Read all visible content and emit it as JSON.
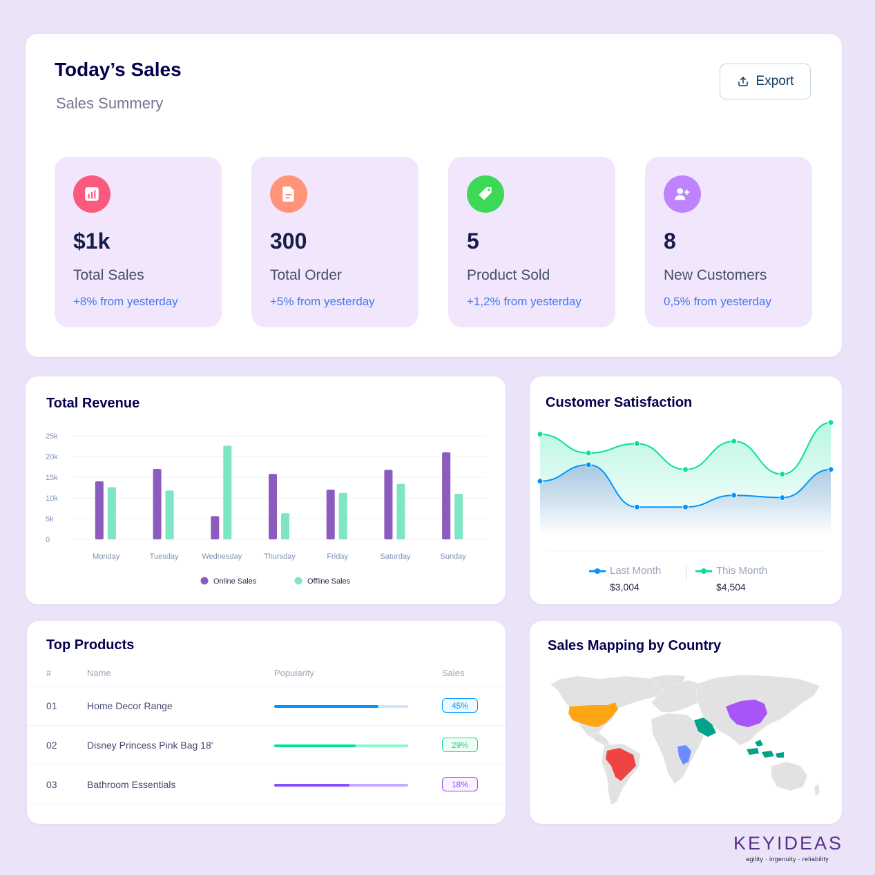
{
  "today": {
    "title": "Today’s Sales",
    "subtitle": "Sales Summery",
    "export_label": "Export",
    "stats": [
      {
        "value": "$1k",
        "label": "Total Sales",
        "change": "+8% from yesterday",
        "icon": "bar-chart-icon",
        "color": "#fa5a7d"
      },
      {
        "value": "300",
        "label": "Total Order",
        "change": "+5% from yesterday",
        "icon": "document-icon",
        "color": "#ff947a"
      },
      {
        "value": "5",
        "label": "Product Sold",
        "change": "+1,2% from yesterday",
        "icon": "tag-icon",
        "color": "#3cd856"
      },
      {
        "value": "8",
        "label": "New Customers",
        "change": "0,5% from yesterday",
        "icon": "add-user-icon",
        "color": "#bf83ff"
      }
    ]
  },
  "revenue": {
    "title": "Total Revenue",
    "chart_data": {
      "type": "bar",
      "categories": [
        "Monday",
        "Tuesday",
        "Wednesday",
        "Thursday",
        "Friday",
        "Saturday",
        "Sunday"
      ],
      "series": [
        {
          "name": "Online Sales",
          "color": "#8b5bbd",
          "values": [
            14000,
            17000,
            5600,
            15800,
            12000,
            16800,
            21000
          ]
        },
        {
          "name": "Offline Sales",
          "color": "#7ee5c5",
          "values": [
            12600,
            11800,
            22600,
            6300,
            11200,
            13400,
            11000
          ]
        }
      ],
      "yticks": [
        "0",
        "5k",
        "10k",
        "15k",
        "20k",
        "25k"
      ],
      "ylim": [
        0,
        25000
      ],
      "grid": true,
      "legend": "bottom"
    }
  },
  "satisfaction": {
    "title": "Customer Satisfaction",
    "chart_data": {
      "type": "area",
      "x": [
        1,
        2,
        3,
        4,
        5,
        6,
        7
      ],
      "series": [
        {
          "name": "Last Month",
          "color": "#0095ff",
          "values": [
            2.3,
            3.0,
            1.2,
            1.2,
            1.7,
            1.6,
            2.8
          ]
        },
        {
          "name": "This Month",
          "color": "#07e098",
          "values": [
            4.3,
            3.5,
            3.9,
            2.8,
            4.0,
            2.6,
            4.8
          ]
        }
      ],
      "ylim": [
        0,
        5
      ],
      "legend": "bottom"
    },
    "legend": [
      {
        "name": "Last Month",
        "amount": "$3,004",
        "color": "#0095ff"
      },
      {
        "name": "This Month",
        "amount": "$4,504",
        "color": "#07e098"
      }
    ]
  },
  "products": {
    "title": "Top Products",
    "headers": {
      "num": "#",
      "name": "Name",
      "popularity": "Popularity",
      "sales": "Sales"
    },
    "rows": [
      {
        "num": "01",
        "name": "Home Decor Range",
        "popularity": 0.78,
        "sales": "45%",
        "color": "#0095ff",
        "track": "#cde7ff",
        "badge_bg": "#f0f9ff"
      },
      {
        "num": "02",
        "name": "Disney Princess Pink Bag 18'",
        "popularity": 0.61,
        "sales": "29%",
        "color": "#00e096",
        "track": "#8cfac7",
        "badge_bg": "#f0fdf4"
      },
      {
        "num": "03",
        "name": "Bathroom Essentials",
        "popularity": 0.56,
        "sales": "18%",
        "color": "#884dff",
        "track": "#c5a8ff",
        "badge_bg": "#fbf1ff"
      }
    ]
  },
  "map": {
    "title": "Sales Mapping by Country",
    "highlight_colors": {
      "usa": "#ffa412",
      "brazil": "#ef4444",
      "saudi": "#00a389",
      "congo": "#6b8cff",
      "china": "#a855f7",
      "indonesia": "#00a389"
    }
  },
  "brand": {
    "logo": "KEYIDEAS",
    "tagline": "agility · ingenuity · reliability"
  }
}
